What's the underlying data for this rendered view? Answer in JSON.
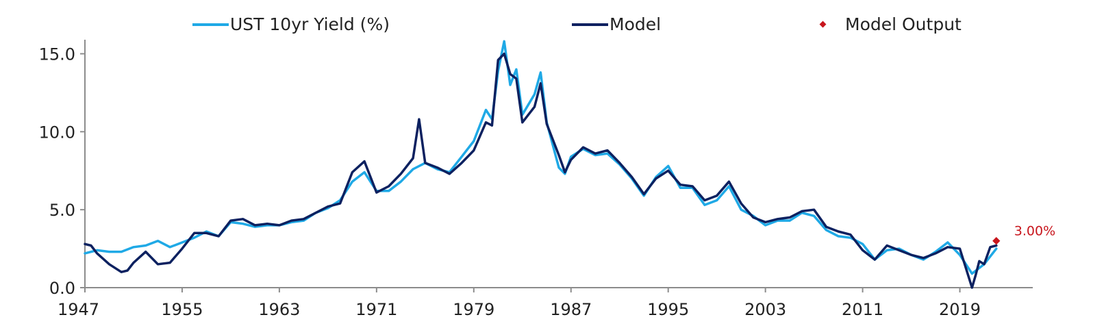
{
  "chart_data": {
    "type": "line",
    "title": "",
    "xlabel": "",
    "ylabel": "",
    "xlim": [
      1947,
      2025
    ],
    "ylim": [
      0,
      15.9
    ],
    "x_ticks": [
      1947,
      1955,
      1963,
      1971,
      1979,
      1987,
      1995,
      2003,
      2011,
      2019
    ],
    "x_tick_labels": [
      "1947",
      "1955",
      "1963",
      "1971",
      "1979",
      "1987",
      "1995",
      "2003",
      "2011",
      "2019"
    ],
    "y_ticks": [
      0,
      5,
      10,
      15
    ],
    "y_tick_labels": [
      "0.0",
      "5.0",
      "10.0",
      "15.0"
    ],
    "grid": false,
    "legend_position": "top",
    "colors": {
      "yield": "#1fa9e6",
      "model": "#0d2160",
      "output": "#c8161d"
    },
    "series": [
      {
        "name": "UST 10yr Yield (%)",
        "x": [
          1947,
          1948,
          1949,
          1950,
          1951,
          1952,
          1953,
          1954,
          1955,
          1956,
          1957,
          1958,
          1959,
          1960,
          1961,
          1962,
          1963,
          1964,
          1965,
          1966,
          1967,
          1968,
          1969,
          1970,
          1971,
          1972,
          1973,
          1974,
          1975,
          1976,
          1977,
          1978,
          1979,
          1980,
          1980.5,
          1981,
          1981.5,
          1982,
          1982.5,
          1983,
          1984,
          1984.5,
          1985,
          1986,
          1986.5,
          1987,
          1988,
          1989,
          1990,
          1991,
          1992,
          1993,
          1994,
          1995,
          1996,
          1997,
          1998,
          1999,
          2000,
          2001,
          2002,
          2003,
          2004,
          2005,
          2006,
          2007,
          2008,
          2009,
          2010,
          2011,
          2012,
          2013,
          2014,
          2015,
          2016,
          2017,
          2018,
          2019,
          2020,
          2021,
          2022
        ],
        "y": [
          2.2,
          2.4,
          2.3,
          2.3,
          2.6,
          2.7,
          3.0,
          2.6,
          2.9,
          3.2,
          3.6,
          3.3,
          4.2,
          4.1,
          3.9,
          4.0,
          4.0,
          4.2,
          4.3,
          4.8,
          5.1,
          5.6,
          6.8,
          7.4,
          6.2,
          6.2,
          6.8,
          7.6,
          8.0,
          7.6,
          7.4,
          8.4,
          9.4,
          11.4,
          10.8,
          13.9,
          15.8,
          13.0,
          14.0,
          11.1,
          12.4,
          13.8,
          10.6,
          7.7,
          7.3,
          8.4,
          8.9,
          8.5,
          8.6,
          7.9,
          7.0,
          5.9,
          7.1,
          7.8,
          6.4,
          6.4,
          5.3,
          5.6,
          6.5,
          5.0,
          4.6,
          4.0,
          4.3,
          4.3,
          4.8,
          4.6,
          3.7,
          3.3,
          3.2,
          2.8,
          1.8,
          2.4,
          2.5,
          2.1,
          1.8,
          2.3,
          2.9,
          2.1,
          0.9,
          1.5,
          2.5
        ]
      },
      {
        "name": "Model",
        "x": [
          1947,
          1947.5,
          1948,
          1949,
          1950,
          1950.5,
          1951,
          1952,
          1953,
          1954,
          1955,
          1956,
          1957,
          1958,
          1959,
          1960,
          1961,
          1962,
          1963,
          1964,
          1965,
          1966,
          1967,
          1968,
          1969,
          1970,
          1971,
          1972,
          1973,
          1974,
          1974.5,
          1975,
          1976,
          1977,
          1978,
          1979,
          1980,
          1980.5,
          1981,
          1981.5,
          1982,
          1982.5,
          1983,
          1984,
          1984.5,
          1985,
          1986,
          1986.5,
          1987,
          1988,
          1989,
          1990,
          1991,
          1992,
          1993,
          1994,
          1995,
          1996,
          1997,
          1998,
          1999,
          2000,
          2001,
          2002,
          2003,
          2004,
          2005,
          2006,
          2007,
          2008,
          2009,
          2010,
          2011,
          2012,
          2013,
          2014,
          2015,
          2016,
          2017,
          2018,
          2019,
          2020,
          2020.3,
          2020.6,
          2021,
          2021.5,
          2022
        ],
        "y": [
          2.8,
          2.7,
          2.2,
          1.5,
          1.0,
          1.1,
          1.6,
          2.3,
          1.5,
          1.6,
          2.5,
          3.5,
          3.5,
          3.3,
          4.3,
          4.4,
          4.0,
          4.1,
          4.0,
          4.3,
          4.4,
          4.8,
          5.2,
          5.4,
          7.4,
          8.1,
          6.1,
          6.5,
          7.3,
          8.3,
          10.8,
          8.0,
          7.7,
          7.3,
          8.0,
          8.8,
          10.6,
          10.4,
          14.6,
          15.0,
          13.7,
          13.4,
          10.6,
          11.6,
          13.1,
          10.5,
          8.5,
          7.4,
          8.2,
          9.0,
          8.6,
          8.8,
          8.0,
          7.1,
          6.0,
          7.0,
          7.5,
          6.6,
          6.5,
          5.6,
          5.9,
          6.8,
          5.4,
          4.5,
          4.2,
          4.4,
          4.5,
          4.9,
          5.0,
          3.9,
          3.6,
          3.4,
          2.4,
          1.8,
          2.7,
          2.4,
          2.1,
          1.9,
          2.2,
          2.6,
          2.5,
          0.0,
          0.8,
          1.7,
          1.5,
          2.6,
          2.7
        ]
      }
    ],
    "points": [
      {
        "name": "Model Output",
        "x": 2022,
        "y": 3.0,
        "label": "3.00%"
      }
    ]
  }
}
